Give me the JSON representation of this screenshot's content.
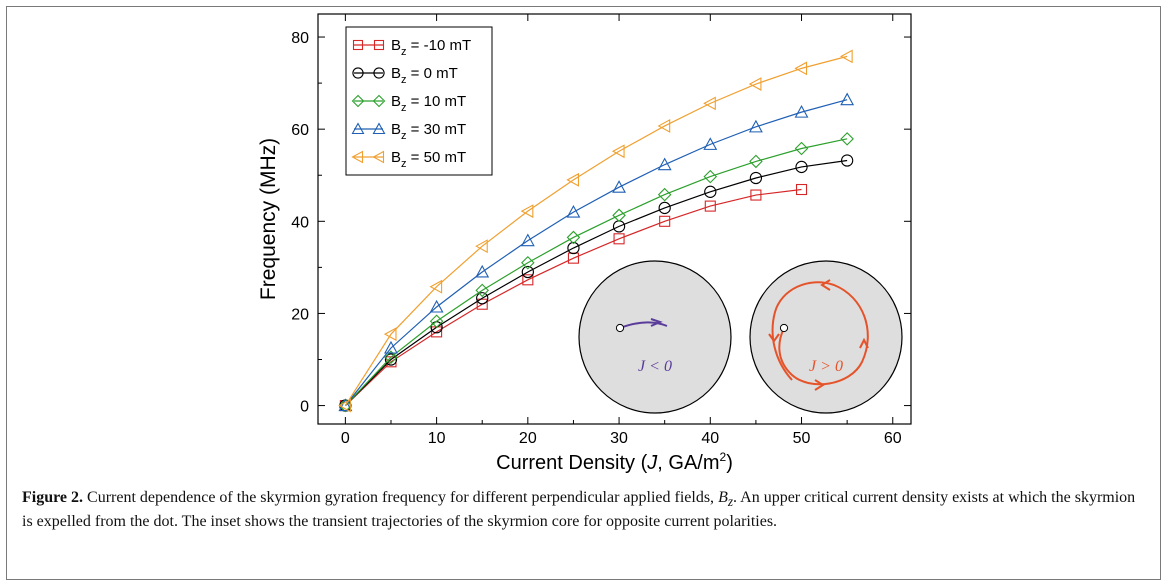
{
  "chart_data": {
    "type": "line",
    "xlabel": "Current Density (J, GA/m²)",
    "ylabel": "Frequency (MHz)",
    "xlim": [
      -3,
      62
    ],
    "ylim": [
      -4,
      85
    ],
    "xticks": [
      0,
      10,
      20,
      30,
      40,
      50,
      60
    ],
    "yticks": [
      0,
      20,
      40,
      60,
      80
    ],
    "legend_position": "top-left",
    "series": [
      {
        "name": "B_z = -10 mT",
        "color": "#d62728",
        "marker": "square",
        "x": [
          0,
          5,
          10,
          15,
          20,
          25,
          30,
          35,
          40,
          45,
          50
        ],
        "y": [
          0,
          9.5,
          16.0,
          22.0,
          27.3,
          32.0,
          36.2,
          40.0,
          43.3,
          45.7,
          46.9
        ]
      },
      {
        "name": "B_z = 0 mT",
        "color": "#000000",
        "marker": "circle",
        "x": [
          0,
          5,
          10,
          15,
          20,
          25,
          30,
          35,
          40,
          45,
          50,
          55
        ],
        "y": [
          0,
          10.0,
          17.0,
          23.3,
          29.0,
          34.2,
          38.9,
          42.9,
          46.4,
          49.4,
          51.8,
          53.2
        ]
      },
      {
        "name": "B_z = 10 mT",
        "color": "#2ca02c",
        "marker": "diamond",
        "x": [
          0,
          5,
          10,
          15,
          20,
          25,
          30,
          35,
          40,
          45,
          50,
          55
        ],
        "y": [
          0,
          10.5,
          18.3,
          25.0,
          31.0,
          36.5,
          41.3,
          45.8,
          49.7,
          53.0,
          55.8,
          57.9
        ]
      },
      {
        "name": "B_z = 30 mT",
        "color": "#1f5fb4",
        "marker": "triangle-up",
        "x": [
          0,
          5,
          10,
          15,
          20,
          25,
          30,
          35,
          40,
          45,
          50,
          55
        ],
        "y": [
          0,
          12.5,
          21.4,
          29.0,
          35.8,
          42.0,
          47.4,
          52.3,
          56.7,
          60.5,
          63.7,
          66.4
        ]
      },
      {
        "name": "B_z = 50 mT",
        "color": "#f0a030",
        "marker": "triangle-left",
        "x": [
          0,
          5,
          10,
          15,
          20,
          25,
          30,
          35,
          40,
          45,
          50,
          55
        ],
        "y": [
          0,
          15.5,
          25.8,
          34.6,
          42.2,
          49.0,
          55.2,
          60.7,
          65.6,
          69.8,
          73.2,
          75.8
        ]
      }
    ],
    "inset": {
      "left_label": "J < 0",
      "right_label": "J > 0",
      "left_color": "#5a3c9a",
      "right_color": "#e5532a",
      "disc_color": "#dedede"
    }
  },
  "caption": {
    "label": "Figure 2.",
    "text": "Current dependence of the skyrmion gyration frequency for different perpendicular applied fields, B_z. An upper critical current density exists at which the skyrmion is expelled from the dot. The inset shows the transient trajectories of the skyrmion core for opposite current polarities."
  }
}
